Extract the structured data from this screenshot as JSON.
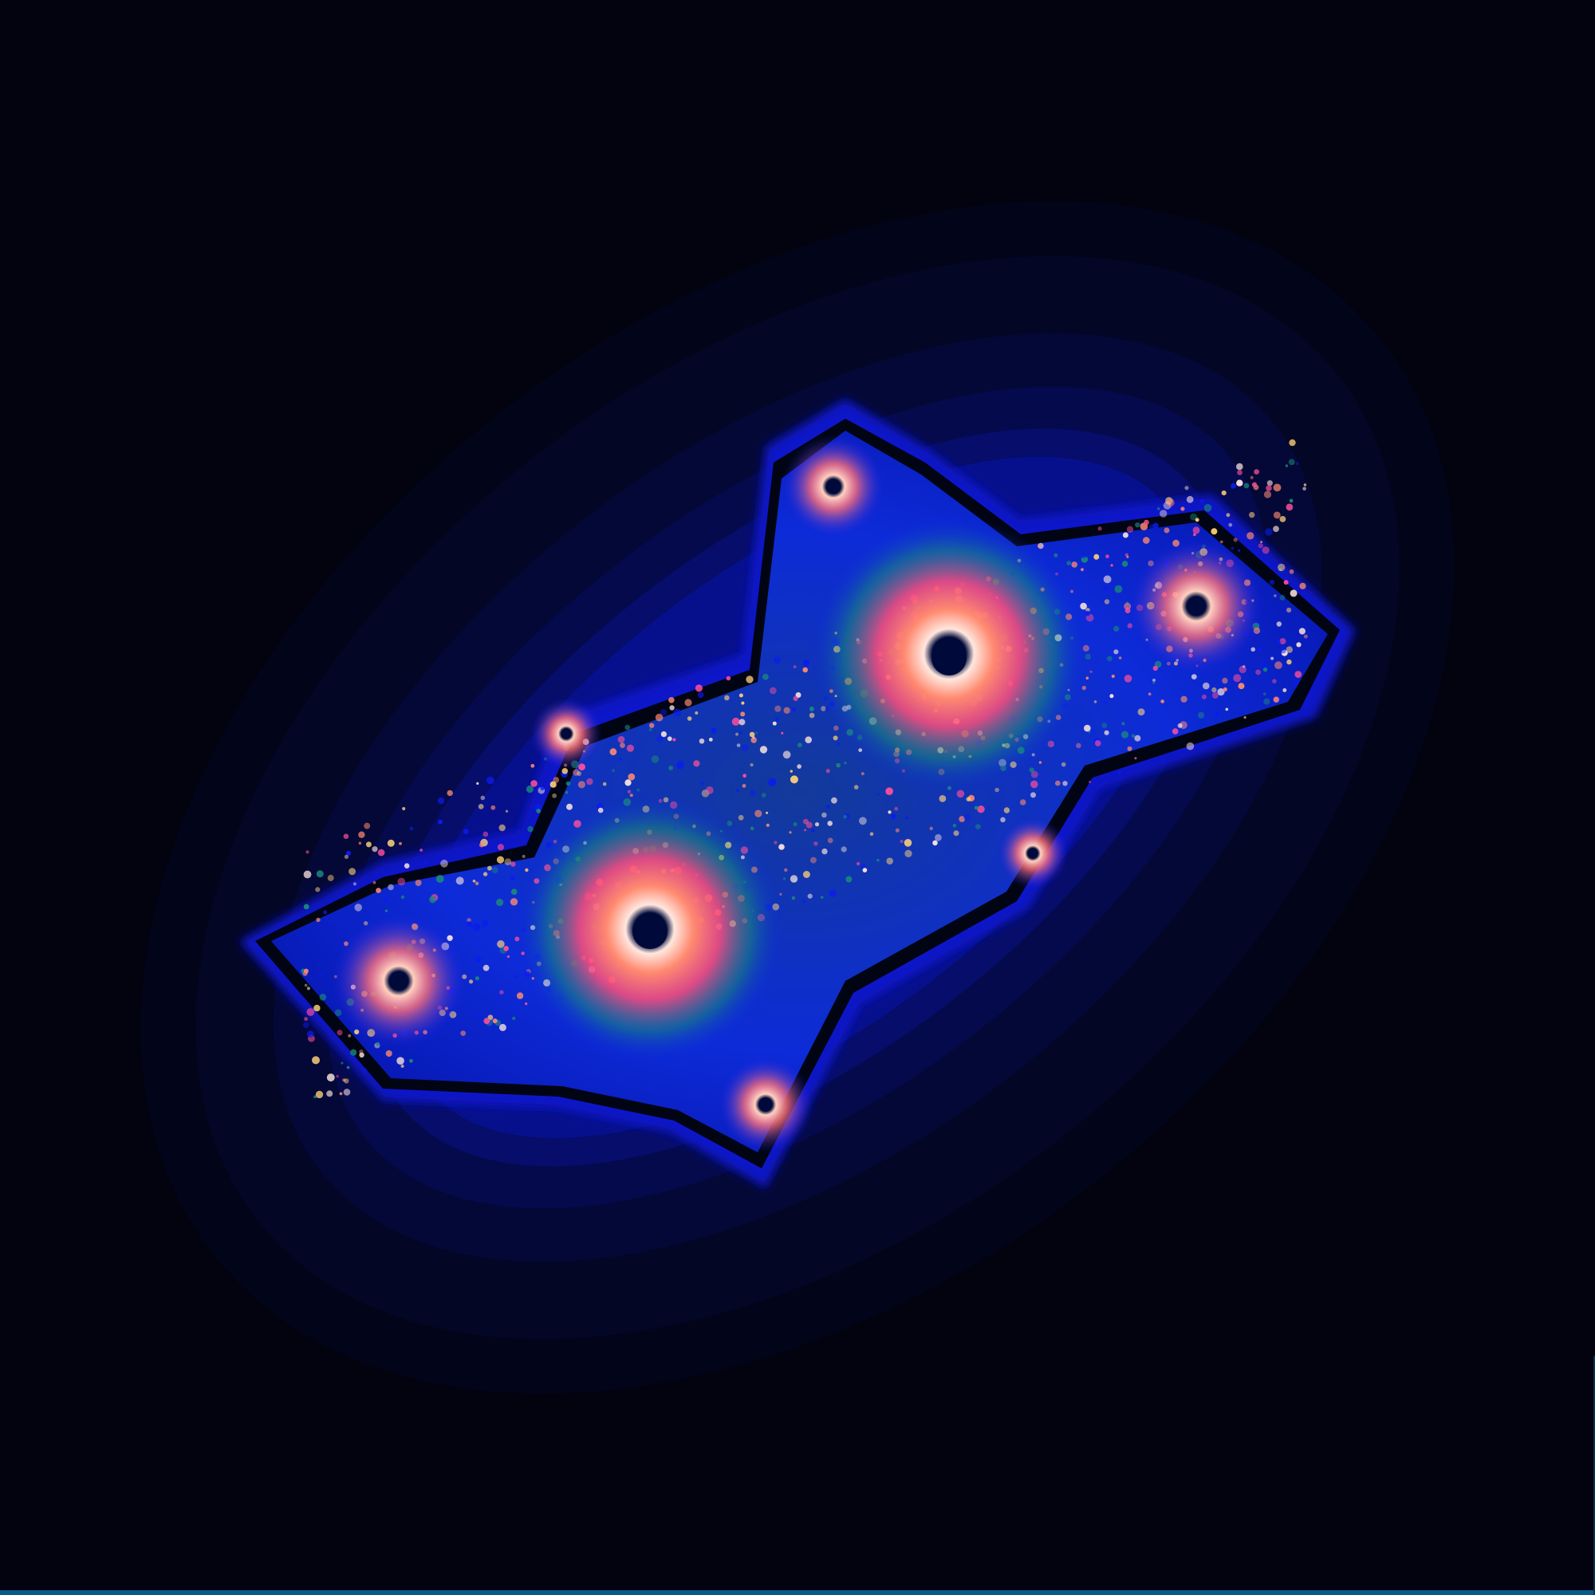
{
  "image": {
    "subject": "",
    "palette": {
      "background": "#02030f",
      "halo_outer": "#030522",
      "halo_mid": "#050a55",
      "halo_inner": "#0710b8",
      "edge_blue": "#0b1cf0",
      "core_dark": "#000516",
      "teal": "#1a8a7a",
      "salmon": "#ff8a70",
      "pink": "#ff4f9a",
      "gold": "#ffd27a",
      "white_hot": "#ffe7df"
    },
    "spirals": [
      {
        "role": "major",
        "label": ""
      },
      {
        "role": "major",
        "label": ""
      },
      {
        "role": "minor",
        "label": ""
      },
      {
        "role": "minor",
        "label": ""
      },
      {
        "role": "minor",
        "label": ""
      },
      {
        "role": "minor",
        "label": ""
      }
    ]
  }
}
